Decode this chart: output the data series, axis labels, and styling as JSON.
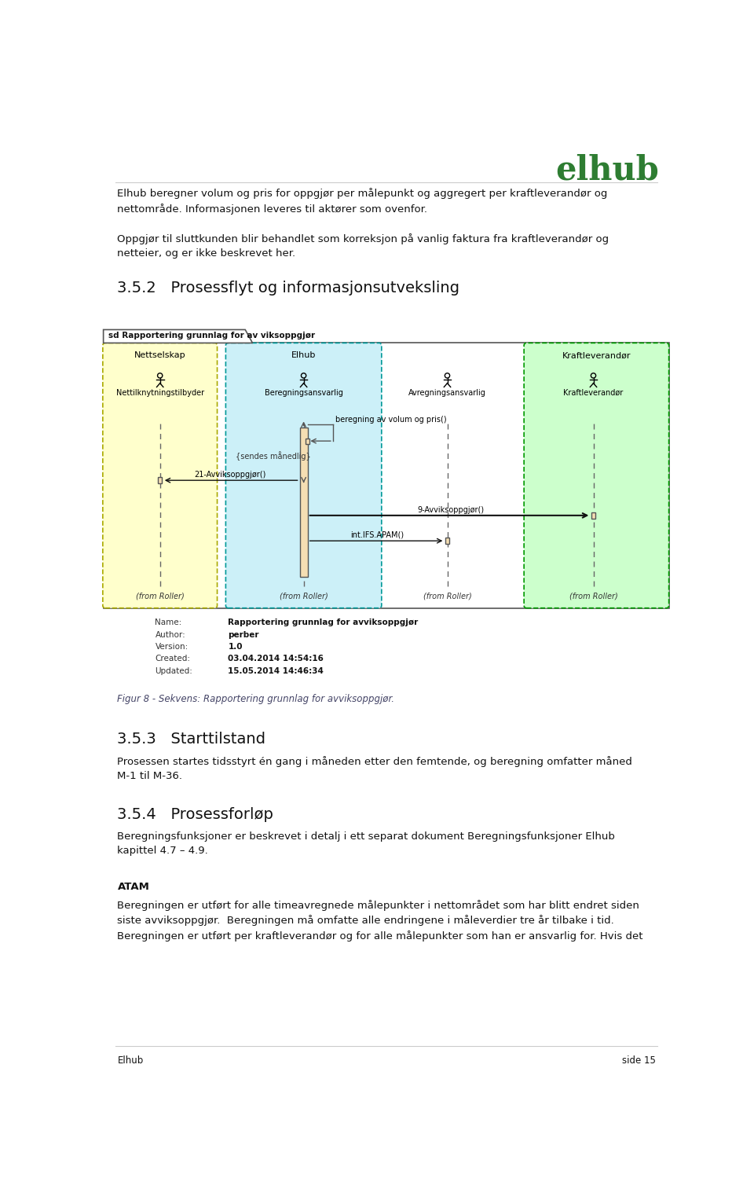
{
  "page_width": 9.6,
  "page_height": 15.32,
  "bg_color": "#ffffff",
  "logo_text": "elhub",
  "logo_color": "#2e7d32",
  "footer_left": "Elhub",
  "footer_right": "side 15",
  "para1": "Elhub beregner volum og pris for oppgjør per målepunkt og aggregert per kraftleverandør og\nnettområde. Informasjonen leveres til aktører som ovenfor.",
  "para2": "Oppgjør til sluttkunden blir behandlet som korreksjon på vanlig faktura fra kraftleverandør og\nnetteier, og er ikke beskrevet her.",
  "section_heading": "3.5.2   Prosessflyt og informasjonsutveksling",
  "diagram_title": "sd Rapportering grunnlag for av viksoppgjør",
  "lane_nettselskap_label": "Nettselskap",
  "lane_elhub_label": "Elhub",
  "lane_kraftleverandor_label": "Kraftleverandør",
  "actor1_name": "Nettilknytningstilbyder",
  "actor2_name": "Beregningsansvarlig",
  "actor3_name": "Avregningsansvarlig",
  "actor4_name": "Kraftleverandør",
  "from_roller": "(from Roller)",
  "msg1_label": "beregning av volum og pris()",
  "msg2_label": "{sendes månedlig}",
  "msg3_label": "21-Avviksoppgjør()",
  "msg4_label": "9-Avviksoppgjør()",
  "msg5_label": "int.IFS.APAM()",
  "meta_name_lbl": "Name:",
  "meta_name_val": "Rapportering grunnlag for avviksoppgjør",
  "meta_author_lbl": "Author:",
  "meta_author_val": "perber",
  "meta_version_lbl": "Version:",
  "meta_version_val": "1.0",
  "meta_created_lbl": "Created:",
  "meta_created_val": "03.04.2014 14:54:16",
  "meta_updated_lbl": "Updated:",
  "meta_updated_val": "15.05.2014 14:46:34",
  "fig_caption": "Figur 8 - Sekvens: Rapportering grunnlag for avviksoppgjør.",
  "section2_heading": "3.5.3   Starttilstand",
  "section2_text": "Prosessen startes tidsstyrt én gang i måneden etter den femtende, og beregning omfatter måned\nM-1 til M-36.",
  "section3_heading": "3.5.4   Prosessforløp",
  "section3_text": "Beregningsfunksjoner er beskrevet i detalj i ett separat dokument Beregningsfunksjoner Elhub\nkapittel 4.7 – 4.9.",
  "section4_heading": "ATAM",
  "section4_text": "Beregningen er utført for alle timeavregnede målepunkter i nettområdet som har blitt endret siden\nsiste avviksoppgjør.  Beregningen må omfatte alle endringene i måleverdier tre år tilbake i tid.\nBeregningen er utført per kraftleverandør og for alle målepunkter som han er ansvarlig for. Hvis det"
}
